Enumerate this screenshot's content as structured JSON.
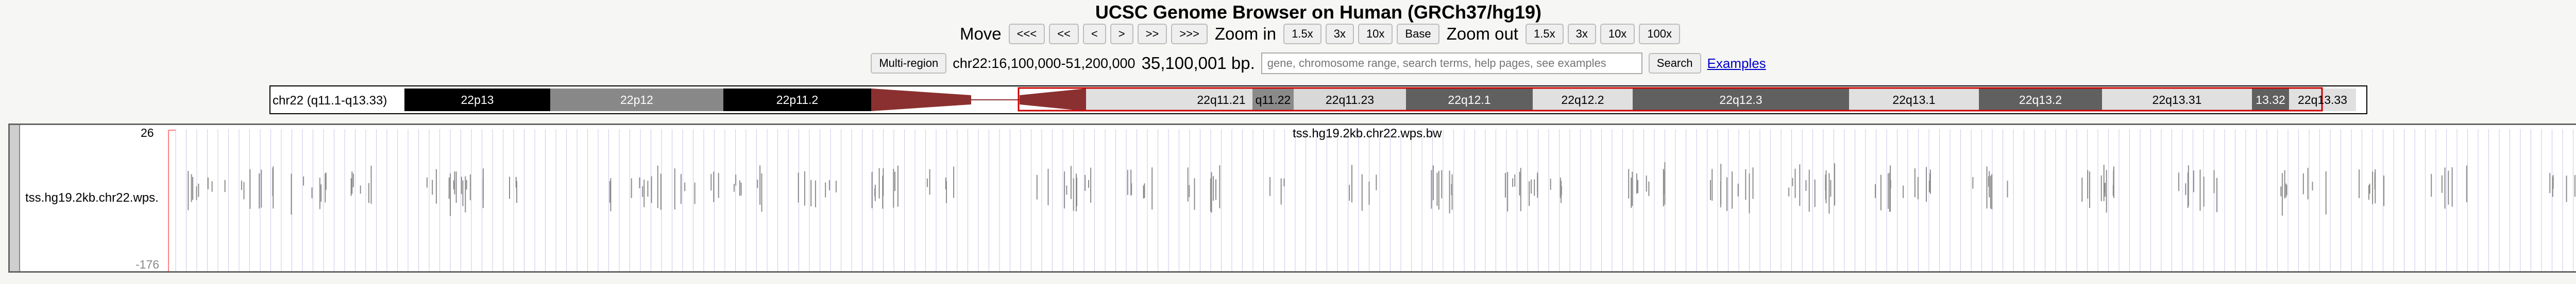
{
  "title": "UCSC Genome Browser on Human (GRCh37/hg19)",
  "nav": {
    "move_label": "Move",
    "move_buttons": [
      "<<<",
      "<<",
      "<",
      ">",
      ">>",
      ">>>"
    ],
    "zoom_in_label": "Zoom in",
    "zoom_in_buttons": [
      "1.5x",
      "3x",
      "10x",
      "Base"
    ],
    "zoom_out_label": "Zoom out",
    "zoom_out_buttons": [
      "1.5x",
      "3x",
      "10x",
      "100x"
    ]
  },
  "position": {
    "multi_region_label": "Multi-region",
    "coordinates": "chr22:16,100,000-51,200,000",
    "size": "35,100,001 bp.",
    "search_placeholder": "gene, chromosome range, search terms, help pages, see examples",
    "search_value": "",
    "search_button": "Search",
    "examples_link": "Examples"
  },
  "ideogram": {
    "chrom_label": "chr22 (q11.1-q13.33)",
    "bands": [
      "22p13",
      "22p12",
      "22p11.2",
      "22q11.21",
      "q11.22",
      "22q11.23",
      "22q12.1",
      "22q12.2",
      "22q12.3",
      "22q13.1",
      "22q13.2",
      "22q13.31",
      "13.32",
      "22q13.33"
    ],
    "centromere_color": "#8b3030",
    "highlight_color": "#cc0000"
  },
  "track": {
    "name": "tss.hg19.2kb.chr22.wps.",
    "title": "tss.hg19.2kb.chr22.wps.bw",
    "y_max": "26",
    "y_min": "-176",
    "signal_color": "#8c8c8c",
    "grid_color": "#c8c8e6",
    "cursor_color": "#ff8080"
  }
}
